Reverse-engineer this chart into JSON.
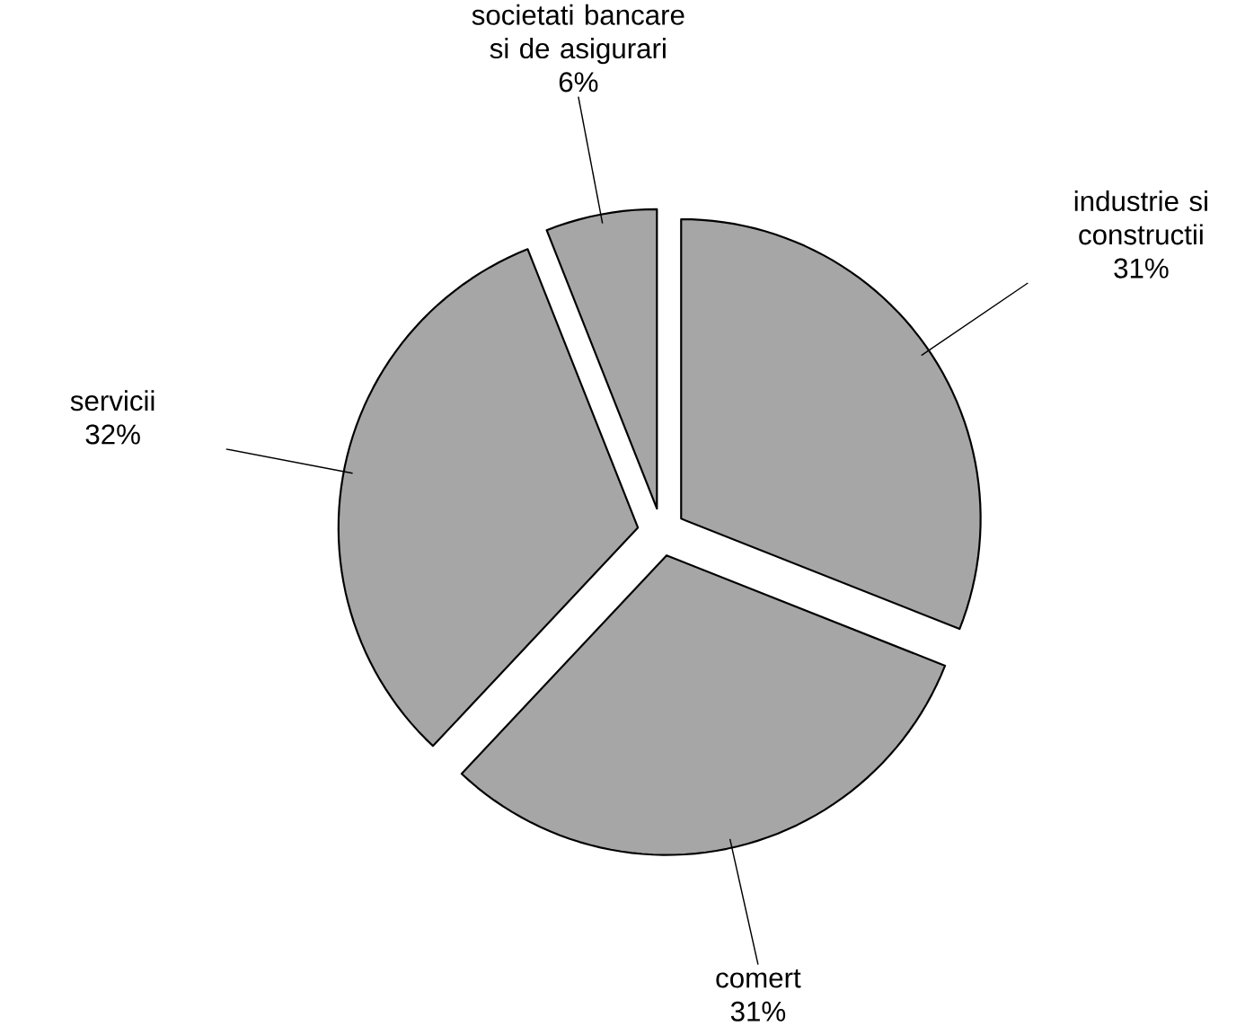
{
  "chart_data": {
    "type": "pie",
    "categories": [
      "industrie si constructii",
      "comert",
      "servicii",
      "societati bancare si de asigurari"
    ],
    "values": [
      31,
      31,
      32,
      6
    ],
    "value_labels": [
      "31%",
      "31%",
      "32%",
      "6%"
    ],
    "colors": [
      "#a6a6a6",
      "#a6a6a6",
      "#a6a6a6",
      "#a6a6a6"
    ]
  }
}
